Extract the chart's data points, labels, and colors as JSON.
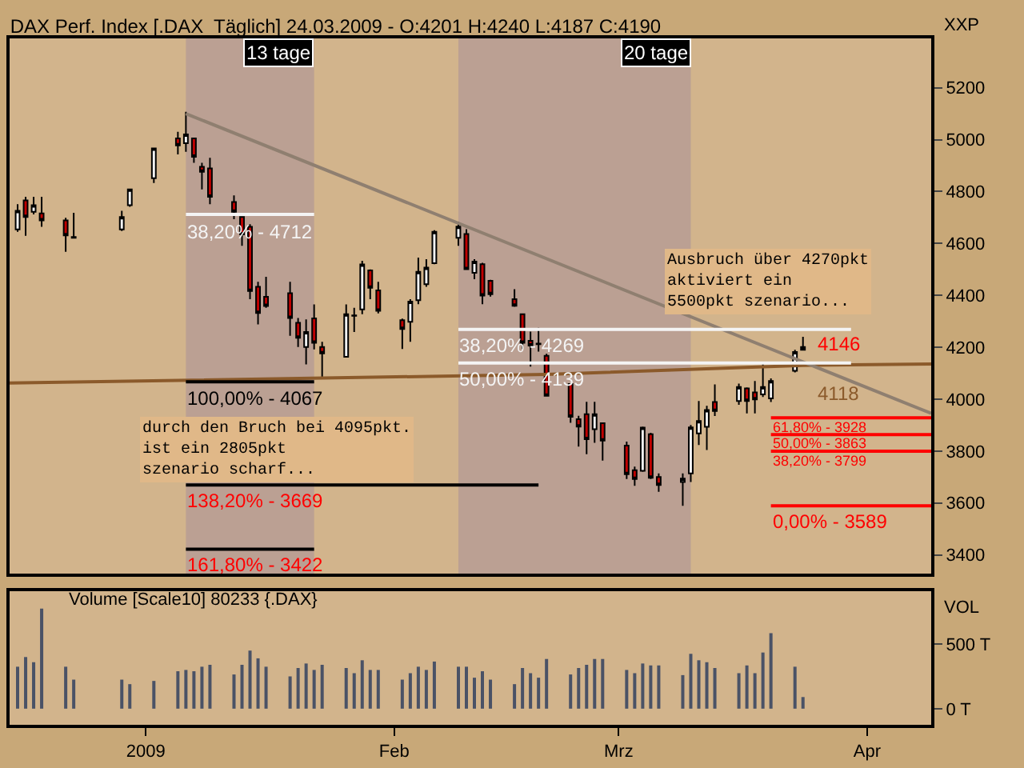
{
  "chart_data": [
    {
      "type": "candlestick",
      "title": "DAX Perf. Index [.DAX  Täglich] 24.03.2009 - O:4201 H:4240 L:4187 C:4190",
      "ylabel": "XXP",
      "tick_labels": "y",
      "x": [
        "2008-12-16",
        "2008-12-17",
        "2008-12-18",
        "2008-12-19",
        "2008-12-22",
        "2008-12-23",
        "2008-12-29",
        "2008-12-30",
        "2009-01-02",
        "2009-01-05",
        "2009-01-06",
        "2009-01-07",
        "2009-01-08",
        "2009-01-09",
        "2009-01-12",
        "2009-01-13",
        "2009-01-14",
        "2009-01-15",
        "2009-01-16",
        "2009-01-19",
        "2009-01-20",
        "2009-01-21",
        "2009-01-22",
        "2009-01-23",
        "2009-01-26",
        "2009-01-27",
        "2009-01-28",
        "2009-01-29",
        "2009-01-30",
        "2009-02-02",
        "2009-02-03",
        "2009-02-04",
        "2009-02-05",
        "2009-02-06",
        "2009-02-09",
        "2009-02-10",
        "2009-02-11",
        "2009-02-12",
        "2009-02-13",
        "2009-02-16",
        "2009-02-17",
        "2009-02-18",
        "2009-02-19",
        "2009-02-20",
        "2009-02-23",
        "2009-02-24",
        "2009-02-25",
        "2009-02-26",
        "2009-02-27",
        "2009-03-02",
        "2009-03-03",
        "2009-03-04",
        "2009-03-05",
        "2009-03-06",
        "2009-03-09",
        "2009-03-10",
        "2009-03-11",
        "2009-03-12",
        "2009-03-13",
        "2009-03-16",
        "2009-03-17",
        "2009-03-18",
        "2009-03-19",
        "2009-03-20",
        "2009-03-23",
        "2009-03-24"
      ],
      "ohlc": [
        [
          4654,
          4751,
          4645,
          4726
        ],
        [
          4766,
          4780,
          4629,
          4702
        ],
        [
          4722,
          4780,
          4712,
          4747
        ],
        [
          4716,
          4780,
          4664,
          4689
        ],
        [
          4689,
          4699,
          4568,
          4631
        ],
        [
          4625,
          4718,
          4622,
          4622
        ],
        [
          4654,
          4726,
          4648,
          4702
        ],
        [
          4747,
          4808,
          4741,
          4808
        ],
        [
          4851,
          4966,
          4833,
          4966
        ],
        [
          5005,
          5030,
          4943,
          4978
        ],
        [
          4986,
          5107,
          4953,
          5020
        ],
        [
          5005,
          5005,
          4911,
          4934
        ],
        [
          4895,
          4911,
          4808,
          4876
        ],
        [
          4889,
          4930,
          4751,
          4780
        ],
        [
          4760,
          4785,
          4693,
          4722
        ],
        [
          4702,
          4705,
          4591,
          4635
        ],
        [
          4664,
          4674,
          4385,
          4417
        ],
        [
          4433,
          4452,
          4288,
          4332
        ],
        [
          4394,
          4471,
          4352,
          4359
        ],
        [
          4408,
          4452,
          4244,
          4313
        ],
        [
          4294,
          4313,
          4201,
          4236
        ],
        [
          4201,
          4307,
          4134,
          4259
        ],
        [
          4311,
          4365,
          4192,
          4217
        ],
        [
          4201,
          4221,
          4086,
          4176
        ],
        [
          4163,
          4365,
          4163,
          4327
        ],
        [
          4323,
          4352,
          4259,
          4321
        ],
        [
          4346,
          4533,
          4327,
          4519
        ],
        [
          4496,
          4500,
          4385,
          4429
        ],
        [
          4419,
          4452,
          4330,
          4340
        ],
        [
          4304,
          4310,
          4193,
          4270
        ],
        [
          4298,
          4385,
          4221,
          4376
        ],
        [
          4381,
          4545,
          4366,
          4491
        ],
        [
          4443,
          4539,
          4433,
          4507
        ],
        [
          4524,
          4651,
          4520,
          4645
        ],
        [
          4622,
          4684,
          4591,
          4665
        ],
        [
          4636,
          4655,
          4501,
          4501
        ],
        [
          4487,
          4539,
          4462,
          4530
        ],
        [
          4520,
          4525,
          4366,
          4399
        ],
        [
          4456,
          4460,
          4395,
          4404
        ],
        [
          4385,
          4424,
          4356,
          4360
        ],
        [
          4327,
          4330,
          4193,
          4217
        ],
        [
          4225,
          4260,
          4125,
          4206
        ],
        [
          4212,
          4275,
          4183,
          4214
        ],
        [
          4167,
          4175,
          4010,
          4013
        ],
        [
          4058,
          4058,
          3909,
          3932
        ],
        [
          3923,
          3936,
          3817,
          3894
        ],
        [
          3942,
          3990,
          3788,
          3846
        ],
        [
          3884,
          3990,
          3832,
          3942
        ],
        [
          3907,
          3910,
          3763,
          3840
        ],
        [
          3821,
          3836,
          3692,
          3711
        ],
        [
          3726,
          3740,
          3666,
          3692
        ],
        [
          3724,
          3894,
          3720,
          3890
        ],
        [
          3865,
          3870,
          3692,
          3697
        ],
        [
          3700,
          3714,
          3643,
          3669
        ],
        [
          3681,
          3714,
          3589,
          3694
        ],
        [
          3714,
          3900,
          3681,
          3891
        ],
        [
          3868,
          3993,
          3823,
          3916
        ],
        [
          3893,
          3974,
          3804,
          3958
        ],
        [
          3989,
          4057,
          3935,
          3954
        ],
        [
          3993,
          4060,
          3978,
          4047
        ],
        [
          4041,
          4045,
          3945,
          3993
        ],
        [
          4026,
          4070,
          3945,
          3999
        ],
        [
          4018,
          4141,
          4008,
          4047
        ],
        [
          4003,
          4080,
          3989,
          4070
        ],
        [
          4109,
          4190,
          4103,
          4182
        ],
        [
          4201,
          4240,
          4187,
          4190
        ]
      ],
      "series": [
        {
          "type": "line",
          "color": "#8b5a2b",
          "x": [
            "2008-12-15",
            "2009-02-20",
            "2009-03-24",
            "2009-04-09"
          ],
          "values": [
            4062,
            4095,
            4130,
            4135
          ]
        },
        {
          "type": "line",
          "color": "#8f7f70",
          "x": [
            "2009-01-06",
            "2009-04-09"
          ],
          "values": [
            5100,
            3945
          ]
        },
        {
          "type": "line",
          "color": "#f4f4f4",
          "x": [
            "2009-01-06",
            "2009-01-22"
          ],
          "values": [
            4712,
            4712
          ]
        },
        {
          "type": "line",
          "color": "#000000",
          "x": [
            "2009-01-06",
            "2009-01-22"
          ],
          "values": [
            4067,
            4067
          ]
        },
        {
          "type": "line",
          "color": "#000000",
          "x": [
            "2009-01-06",
            "2009-02-19"
          ],
          "values": [
            3669,
            3669
          ]
        },
        {
          "type": "line",
          "color": "#000000",
          "x": [
            "2009-01-06",
            "2009-01-22"
          ],
          "values": [
            3422,
            3422
          ]
        },
        {
          "type": "line",
          "color": "#f4f4f4",
          "x": [
            "2009-02-09",
            "2009-03-30"
          ],
          "values": [
            4269,
            4269
          ]
        },
        {
          "type": "line",
          "color": "#f4f4f4",
          "x": [
            "2009-02-09",
            "2009-03-30"
          ],
          "values": [
            4139,
            4139
          ]
        },
        {
          "type": "line",
          "color": "#ff0000",
          "x": [
            "2009-03-20",
            "2009-04-09"
          ],
          "values": [
            3928,
            3928
          ]
        },
        {
          "type": "line",
          "color": "#ff0000",
          "x": [
            "2009-03-20",
            "2009-04-09"
          ],
          "values": [
            3863,
            3863
          ]
        },
        {
          "type": "line",
          "color": "#ff0000",
          "x": [
            "2009-03-20",
            "2009-04-09"
          ],
          "values": [
            3799,
            3799
          ]
        },
        {
          "type": "line",
          "color": "#ff0000",
          "x": [
            "2009-03-20",
            "2009-04-09"
          ],
          "values": [
            3589,
            3589
          ]
        }
      ],
      "bands": [
        {
          "axis": "x",
          "from": "2009-01-06",
          "to": "2009-01-22",
          "label": "13 tage",
          "color": "#bba093"
        },
        {
          "axis": "x",
          "from": "2009-02-09",
          "to": "2009-03-10",
          "label": "20 tage",
          "color": "#bba093"
        }
      ],
      "annotations": [
        "durch den Bruch bei 4095pkt.\nist ein 2805pkt\nszenario scharf...",
        "Ausbruch über 4270pkt\naktiviert ein\n5500pkt szenario...",
        {
          "text": "38,20% - 4712",
          "x": "2009-01-06",
          "y": 4712
        },
        {
          "text": "100,00% - 4067",
          "x": "2009-01-06",
          "y": 4067
        },
        {
          "text": "138,20% - 3669",
          "x": "2009-01-06",
          "y": 3669
        },
        {
          "text": "161,80% - 3422",
          "x": "2009-01-06",
          "y": 3422
        },
        {
          "text": "38,20% - 4269",
          "x": "2009-02-09",
          "y": 4269
        },
        {
          "text": "50,00% - 4139",
          "x": "2009-02-09",
          "y": 4139
        },
        {
          "text": "61,80% - 3928",
          "x": "2009-03-20",
          "y": 3928
        },
        {
          "text": "50,00% - 3863",
          "x": "2009-03-20",
          "y": 3863
        },
        {
          "text": "38,20% - 3799",
          "x": "2009-03-20",
          "y": 3799
        },
        {
          "text": "0,00% - 3589",
          "x": "2009-03-20",
          "y": 3589
        },
        {
          "text": "4146",
          "x": "2009-03-24",
          "y": 4146
        },
        {
          "text": "4118",
          "x": "2009-03-24",
          "y": 4118
        }
      ],
      "xlim": [
        "2008-12-15",
        "2009-04-09"
      ],
      "ylim": [
        3327,
        5390
      ],
      "yticks": [
        3400,
        3600,
        3800,
        4000,
        4200,
        4400,
        4600,
        4800,
        5000,
        5200
      ],
      "grid": false
    },
    {
      "type": "bar",
      "ylabel": "VOL",
      "color": "#4a5266",
      "annotations": [
        "Volume [Scale10] 80233 {.DAX}"
      ],
      "x": [
        "2008-12-16",
        "2008-12-17",
        "2008-12-18",
        "2008-12-19",
        "2008-12-22",
        "2008-12-23",
        "2008-12-29",
        "2008-12-30",
        "2009-01-02",
        "2009-01-05",
        "2009-01-06",
        "2009-01-07",
        "2009-01-08",
        "2009-01-09",
        "2009-01-12",
        "2009-01-13",
        "2009-01-14",
        "2009-01-15",
        "2009-01-16",
        "2009-01-19",
        "2009-01-20",
        "2009-01-21",
        "2009-01-22",
        "2009-01-23",
        "2009-01-26",
        "2009-01-27",
        "2009-01-28",
        "2009-01-29",
        "2009-01-30",
        "2009-02-02",
        "2009-02-03",
        "2009-02-04",
        "2009-02-05",
        "2009-02-06",
        "2009-02-09",
        "2009-02-10",
        "2009-02-11",
        "2009-02-12",
        "2009-02-13",
        "2009-02-16",
        "2009-02-17",
        "2009-02-18",
        "2009-02-19",
        "2009-02-20",
        "2009-02-23",
        "2009-02-24",
        "2009-02-25",
        "2009-02-26",
        "2009-02-27",
        "2009-03-02",
        "2009-03-03",
        "2009-03-04",
        "2009-03-05",
        "2009-03-06",
        "2009-03-09",
        "2009-03-10",
        "2009-03-11",
        "2009-03-12",
        "2009-03-13",
        "2009-03-16",
        "2009-03-17",
        "2009-03-18",
        "2009-03-19",
        "2009-03-20",
        "2009-03-23",
        "2009-03-24"
      ],
      "values": [
        325,
        400,
        360,
        775,
        325,
        225,
        225,
        190,
        215,
        290,
        300,
        290,
        325,
        340,
        265,
        340,
        450,
        390,
        325,
        250,
        315,
        350,
        300,
        340,
        315,
        275,
        375,
        300,
        300,
        225,
        275,
        325,
        300,
        365,
        325,
        325,
        240,
        290,
        225,
        190,
        315,
        275,
        240,
        385,
        265,
        315,
        340,
        385,
        385,
        300,
        275,
        350,
        335,
        335,
        260,
        425,
        375,
        360,
        315,
        275,
        335,
        275,
        435,
        585,
        325,
        90
      ],
      "xlim": [
        "2008-12-15",
        "2009-04-09"
      ],
      "xticks": [
        {
          "value": "2009-01-01",
          "label": "2009"
        },
        {
          "value": "2009-02-01",
          "label": "Feb"
        },
        {
          "value": "2009-03-01",
          "label": "Mrz"
        },
        {
          "value": "2009-04-01",
          "label": "Apr"
        }
      ],
      "ylim": [
        -125,
        912
      ],
      "yticks": [
        {
          "value": 0,
          "label": "0 T"
        },
        {
          "value": 500,
          "label": "500 T"
        }
      ],
      "grid": false
    }
  ]
}
